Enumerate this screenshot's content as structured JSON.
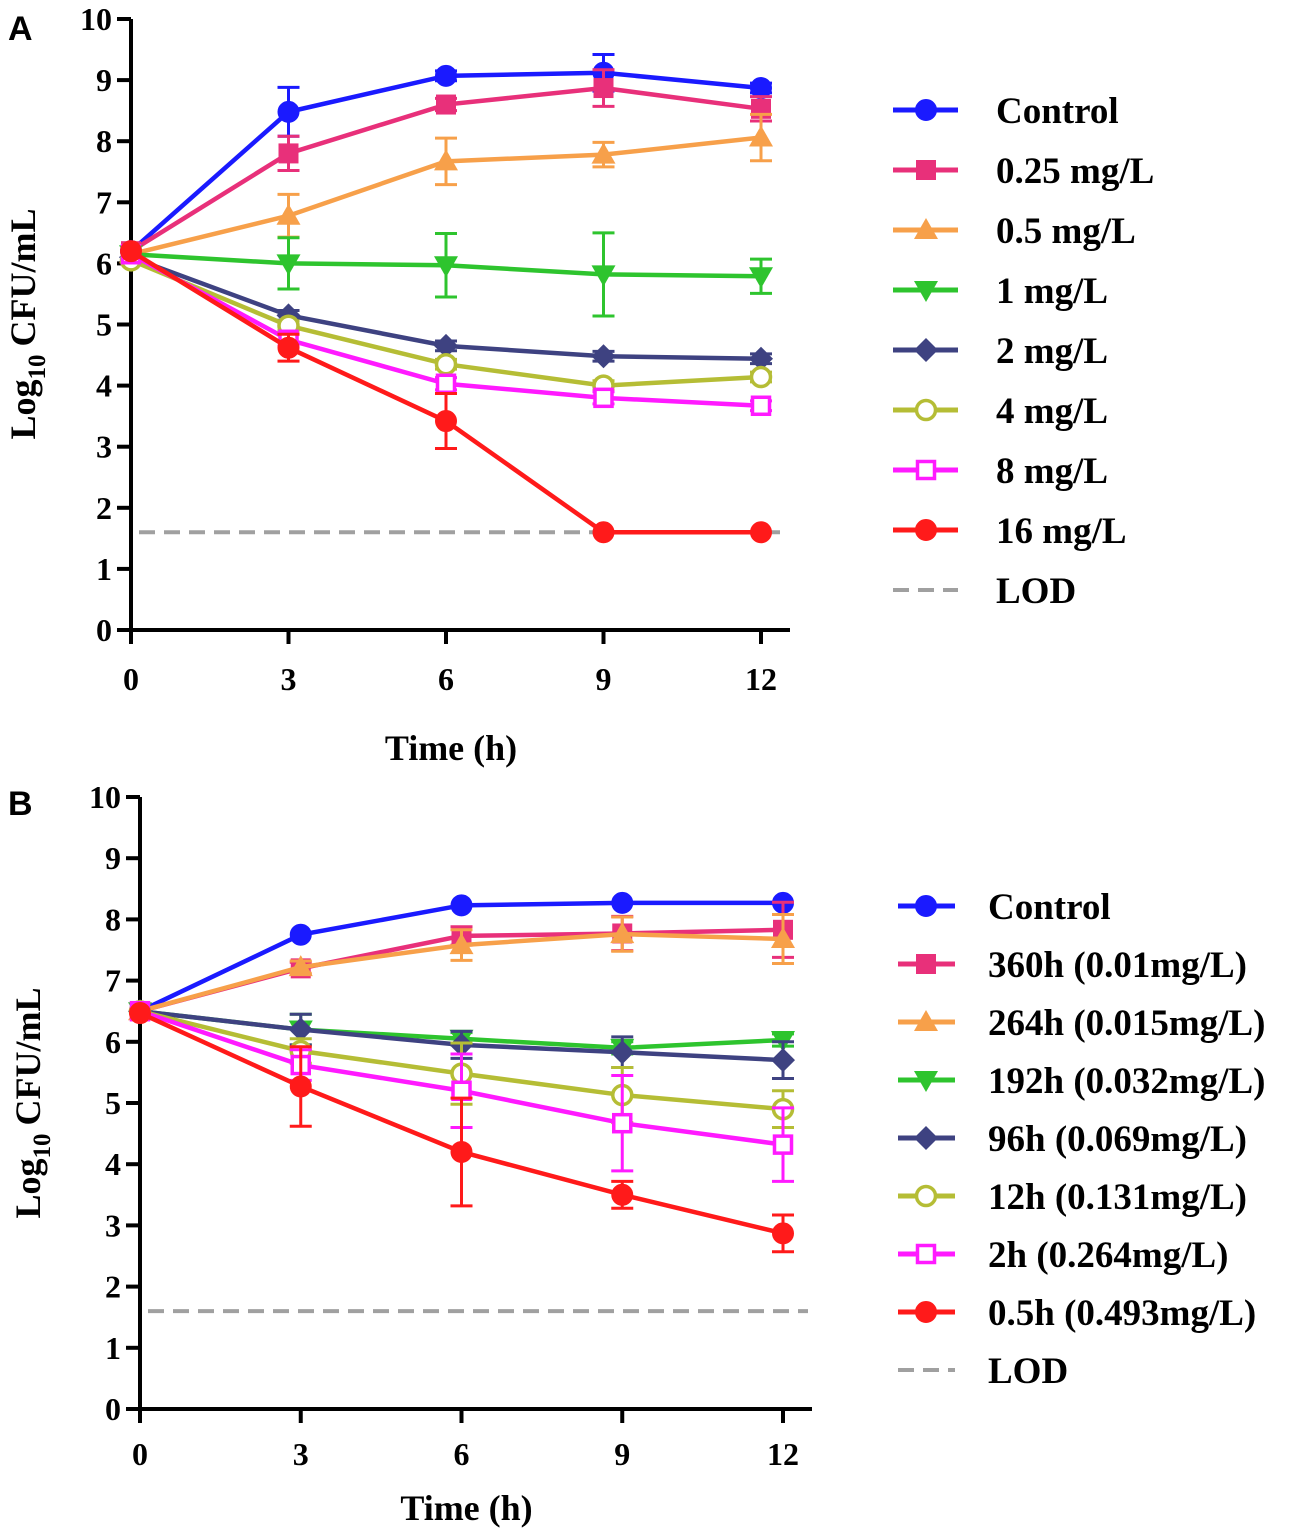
{
  "chart_data": [
    {
      "panel": "A",
      "type": "line",
      "xlabel": "Time (h)",
      "ylabel": "Log10 CFU/mL",
      "ylabel_parts": {
        "base": "Log",
        "sub": "10",
        "rest": "CFU/mL"
      },
      "xlim": [
        0,
        12
      ],
      "ylim": [
        0,
        10
      ],
      "xticks": [
        "0",
        "3",
        "6",
        "9",
        "12"
      ],
      "yticks": [
        "0",
        "1",
        "2",
        "3",
        "4",
        "5",
        "6",
        "7",
        "8",
        "9",
        "10"
      ],
      "x": [
        0,
        3,
        6,
        9,
        12
      ],
      "series": [
        {
          "name": "Control",
          "color": "#1a1aff",
          "marker": "circle",
          "values": [
            6.2,
            8.48,
            9.07,
            9.12,
            8.87
          ],
          "err": [
            0.05,
            0.4,
            0.08,
            0.3,
            0.08
          ]
        },
        {
          "name": "0.25 mg/L",
          "color": "#e8307a",
          "marker": "square",
          "values": [
            6.2,
            7.8,
            8.6,
            8.87,
            8.53
          ],
          "err": [
            0.05,
            0.28,
            0.1,
            0.3,
            0.2
          ]
        },
        {
          "name": "0.5 mg/L",
          "color": "#f7a04a",
          "marker": "triangle-up",
          "values": [
            6.15,
            6.78,
            7.67,
            7.78,
            8.06
          ],
          "err": [
            0.05,
            0.35,
            0.38,
            0.2,
            0.38
          ]
        },
        {
          "name": "1 mg/L",
          "color": "#2ec42e",
          "marker": "triangle-down",
          "values": [
            6.15,
            6.0,
            5.97,
            5.82,
            5.79
          ],
          "err": [
            0.05,
            0.42,
            0.52,
            0.68,
            0.28
          ]
        },
        {
          "name": "2 mg/L",
          "color": "#3e4281",
          "marker": "diamond",
          "values": [
            6.1,
            5.15,
            4.65,
            4.48,
            4.44
          ],
          "err": [
            0.05,
            0.08,
            0.08,
            0.08,
            0.08
          ]
        },
        {
          "name": "4 mg/L",
          "color": "#b5bd35",
          "marker": "circle-open",
          "values": [
            6.05,
            4.98,
            4.35,
            4.0,
            4.14
          ],
          "err": [
            0.05,
            0.08,
            0.08,
            0.08,
            0.08
          ]
        },
        {
          "name": "8 mg/L",
          "color": "#ff1aff",
          "marker": "square-open",
          "values": [
            6.15,
            4.75,
            4.03,
            3.8,
            3.67
          ],
          "err": [
            0.05,
            0.1,
            0.1,
            0.1,
            0.08
          ]
        },
        {
          "name": "16 mg/L",
          "color": "#ff1a1a",
          "marker": "circle",
          "values": [
            6.2,
            4.62,
            3.42,
            1.6,
            1.6
          ],
          "err": [
            0.05,
            0.22,
            0.45,
            0.05,
            0.05
          ]
        }
      ],
      "lod": {
        "name": "LOD",
        "value": 1.6,
        "color": "#a0a0a0"
      }
    },
    {
      "panel": "B",
      "type": "line",
      "xlabel": "Time (h)",
      "ylabel": "Log10 CFU/mL",
      "ylabel_parts": {
        "base": "Log",
        "sub": "10",
        "rest": "CFU/mL"
      },
      "xlim": [
        0,
        12
      ],
      "ylim": [
        0,
        10
      ],
      "xticks": [
        "0",
        "3",
        "6",
        "9",
        "12"
      ],
      "yticks": [
        "0",
        "1",
        "2",
        "3",
        "4",
        "5",
        "6",
        "7",
        "8",
        "9",
        "10"
      ],
      "x": [
        0,
        3,
        6,
        9,
        12
      ],
      "series": [
        {
          "name": "Control",
          "color": "#1a1aff",
          "marker": "circle",
          "values": [
            6.5,
            7.75,
            8.23,
            8.27,
            8.27
          ],
          "err": [
            0.05,
            0.05,
            0.05,
            0.05,
            0.05
          ]
        },
        {
          "name": "360h (0.01mg/L)",
          "color": "#e8307a",
          "marker": "square",
          "values": [
            6.5,
            7.2,
            7.73,
            7.77,
            7.83
          ],
          "err": [
            0.05,
            0.1,
            0.15,
            0.28,
            0.45
          ]
        },
        {
          "name": "264h (0.015mg/L)",
          "color": "#f7a04a",
          "marker": "triangle-up",
          "values": [
            6.5,
            7.22,
            7.58,
            7.76,
            7.68
          ],
          "err": [
            0.05,
            0.1,
            0.25,
            0.28,
            0.4
          ]
        },
        {
          "name": "192h (0.032mg/L)",
          "color": "#2ec42e",
          "marker": "triangle-down",
          "values": [
            6.5,
            6.2,
            6.05,
            5.9,
            6.03
          ],
          "err": [
            0.05,
            0.25,
            0.1,
            0.1,
            0.1
          ]
        },
        {
          "name": "96h (0.069mg/L)",
          "color": "#3e4281",
          "marker": "diamond",
          "values": [
            6.5,
            6.2,
            5.95,
            5.83,
            5.7
          ],
          "err": [
            0.05,
            0.25,
            0.22,
            0.25,
            0.3
          ]
        },
        {
          "name": "12h (0.131mg/L)",
          "color": "#b5bd35",
          "marker": "circle-open",
          "values": [
            6.5,
            5.85,
            5.48,
            5.13,
            4.9
          ],
          "err": [
            0.05,
            0.2,
            0.5,
            0.45,
            0.3
          ]
        },
        {
          "name": "2h (0.264mg/L)",
          "color": "#ff1aff",
          "marker": "square-open",
          "values": [
            6.5,
            5.62,
            5.2,
            4.67,
            4.32
          ],
          "err": [
            0.05,
            0.25,
            0.6,
            0.78,
            0.6
          ]
        },
        {
          "name": "0.5h (0.493mg/L)",
          "color": "#ff1a1a",
          "marker": "circle",
          "values": [
            6.47,
            5.27,
            4.2,
            3.5,
            2.87
          ],
          "err": [
            0.05,
            0.65,
            0.88,
            0.22,
            0.3
          ]
        }
      ],
      "lod": {
        "name": "LOD",
        "value": 1.6,
        "color": "#a0a0a0"
      }
    }
  ]
}
